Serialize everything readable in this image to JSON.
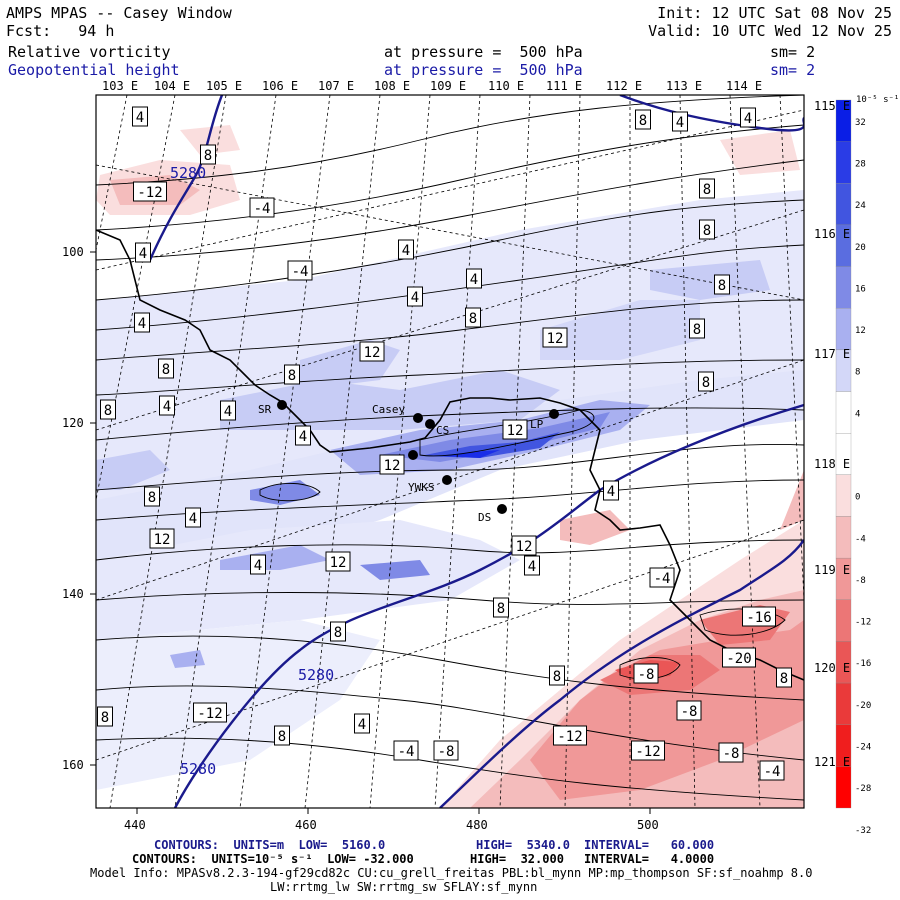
{
  "header": {
    "title": "AMPS MPAS -- Casey Window",
    "forecast": "Fcst:   94 h",
    "init": "Init: 12 UTC Sat 08 Nov 25",
    "valid": "Valid: 10 UTC Wed 12 Nov 25",
    "fields": [
      {
        "name": "Relative vorticity",
        "level": "at pressure =  500 hPa",
        "smooth": "sm= 2",
        "color": "#000000"
      },
      {
        "name": "Geopotential height",
        "level": "at pressure =  500 hPa",
        "smooth": "sm= 2",
        "color": "#1a1aa6"
      }
    ]
  },
  "axes": {
    "top_lon_labels": [
      "103 E",
      "104 E",
      "105 E",
      "106 E",
      "107 E",
      "108 E",
      "109 E",
      "110 E",
      "111 E",
      "112 E",
      "113 E",
      "114 E"
    ],
    "right_lon_labels": [
      "115 E",
      "116 E",
      "117 E",
      "118 E",
      "119 E",
      "120 E",
      "121 E"
    ],
    "x_ticks": [
      "440",
      "460",
      "480",
      "500"
    ],
    "y_ticks": [
      "100",
      "120",
      "140",
      "160"
    ]
  },
  "colorbar": {
    "units": "10⁻⁵ s⁻¹",
    "labels": [
      "32",
      "28",
      "24",
      "20",
      "16",
      "12",
      "8",
      "4",
      "0",
      "-4",
      "-8",
      "-12",
      "-16",
      "-20",
      "-24",
      "-28",
      "-32"
    ],
    "colors": [
      "#0a1ee6",
      "#2a3ce6",
      "#4155e0",
      "#5a6de0",
      "#7f8ae6",
      "#a9b0f0",
      "#d3d7f8",
      "#ffffff",
      "#ffffff",
      "#fadede",
      "#f4bcbc",
      "#f09898",
      "#ec7676",
      "#ea5656",
      "#ea3a3a",
      "#f01e1e",
      "#ff0000"
    ]
  },
  "stations": [
    {
      "label": "SR"
    },
    {
      "label": "Casey"
    },
    {
      "label": "CS"
    },
    {
      "label": "LP"
    },
    {
      "label": "YWKS"
    },
    {
      "label": "DS"
    }
  ],
  "height_labels": [
    "5280",
    "5280",
    "5280"
  ],
  "vorticity_labels": [
    "4",
    "-12",
    "8",
    "-4",
    "4",
    "-4",
    "4",
    "4",
    "4",
    "4",
    "8",
    "4",
    "8",
    "4",
    "8",
    "12",
    "8",
    "12",
    "4",
    "12",
    "8",
    "4",
    "12",
    "4",
    "12",
    "12",
    "8",
    "8",
    "8",
    "8",
    "4",
    "8",
    "8",
    "4",
    "12",
    "8",
    "4",
    "4",
    "8",
    "-4",
    "-16",
    "8",
    "-12",
    "-20",
    "-8",
    "8",
    "8",
    "4",
    "-4",
    "-8",
    "-12",
    "-12",
    "-8",
    "-8",
    "-4",
    "8"
  ],
  "footer": {
    "line1": {
      "contours": "CONTOURS:  UNITS=m  LOW=  5160.0",
      "high": "HIGH=  5340.0",
      "interval": "INTERVAL=   60.000"
    },
    "line2": {
      "contours": "CONTOURS:  UNITS=10⁻⁵ s⁻¹  LOW= -32.000",
      "high": "HIGH=  32.000",
      "interval": "INTERVAL=   4.0000"
    },
    "model_info": "Model Info: MPASv8.2.3-194-gf29cd82c CU:cu_grell_freitas PBL:bl_mynn MP:mp_thompson SF:sf_noahmp 8.0",
    "model_info2": "LW:rrtmg_lw SW:rrtmg_sw SFLAY:sf_mynn"
  }
}
